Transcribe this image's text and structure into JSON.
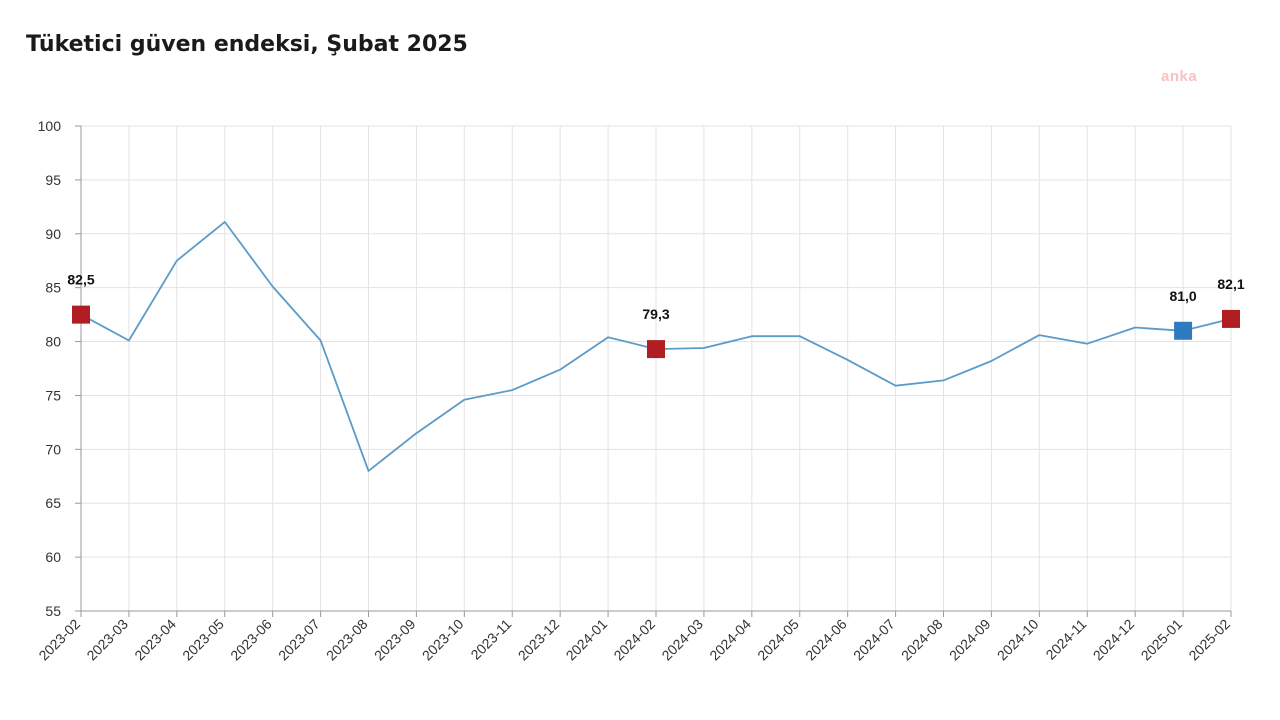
{
  "header": {
    "title": "Tüketici güven endeksi, Şubat 2025"
  },
  "watermark": {
    "text": "anka"
  },
  "chart_data": {
    "type": "line",
    "title": "Tüketici güven endeksi, Şubat 2025",
    "xlabel": "",
    "ylabel": "",
    "ylim": [
      55,
      100
    ],
    "yticks": [
      55,
      60,
      65,
      70,
      75,
      80,
      85,
      90,
      95,
      100
    ],
    "grid": true,
    "line_color": "#5b9bc8",
    "categories": [
      "2023-02",
      "2023-03",
      "2023-04",
      "2023-05",
      "2023-06",
      "2023-07",
      "2023-08",
      "2023-09",
      "2023-10",
      "2023-11",
      "2023-12",
      "2024-01",
      "2024-02",
      "2024-03",
      "2024-04",
      "2024-05",
      "2024-06",
      "2024-07",
      "2024-08",
      "2024-09",
      "2024-10",
      "2024-11",
      "2024-12",
      "2025-01",
      "2025-02"
    ],
    "series": [
      {
        "values": [
          82.5,
          80.1,
          87.5,
          91.1,
          85.1,
          80.1,
          68.0,
          71.5,
          74.6,
          75.5,
          77.4,
          80.4,
          79.3,
          79.4,
          80.5,
          80.5,
          78.3,
          75.9,
          76.4,
          78.2,
          80.6,
          79.8,
          81.3,
          81.0,
          82.1
        ]
      }
    ],
    "markers": [
      {
        "index": 0,
        "label": "82,5",
        "color": "#b01e24"
      },
      {
        "index": 12,
        "label": "79,3",
        "color": "#b01e24"
      },
      {
        "index": 23,
        "label": "81,0",
        "color": "#2f7bbf"
      },
      {
        "index": 24,
        "label": "82,1",
        "color": "#b01e24"
      }
    ]
  }
}
